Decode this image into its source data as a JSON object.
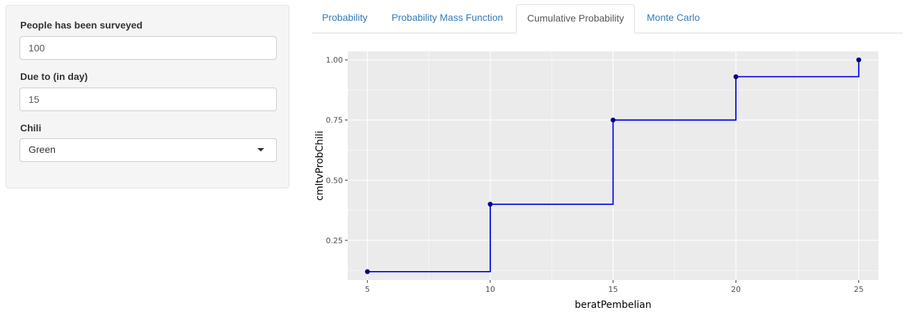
{
  "sidebar": {
    "surveyed": {
      "label": "People has been surveyed",
      "value": "100"
    },
    "due": {
      "label": "Due to (in day)",
      "value": "15"
    },
    "chili": {
      "label": "Chili",
      "selected": "Green",
      "icon": "chevron-down-icon"
    }
  },
  "tabs": [
    {
      "label": "Probability",
      "active": false
    },
    {
      "label": "Probability Mass Function",
      "active": false
    },
    {
      "label": "Cumulative Probability",
      "active": true
    },
    {
      "label": "Monte Carlo",
      "active": false
    }
  ],
  "colors": {
    "panel_background": "#ebebeb",
    "grid": "#ffffff",
    "line": "#0000ee",
    "point": "#00008b",
    "link": "#337ab7"
  },
  "chart_data": {
    "type": "line",
    "step": true,
    "xlabel": "beratPembelian",
    "ylabel": "cmltvProbChili",
    "x": [
      5,
      10,
      15,
      20,
      25
    ],
    "y": [
      0.12,
      0.4,
      0.75,
      0.93,
      1.0
    ],
    "xlim": [
      4.2,
      25.8
    ],
    "ylim": [
      0.085,
      1.035
    ],
    "x_ticks": [
      5,
      10,
      15,
      20,
      25
    ],
    "y_ticks": [
      0.25,
      0.5,
      0.75,
      1.0
    ],
    "x_tick_labels": [
      "5",
      "10",
      "15",
      "20",
      "25"
    ],
    "y_tick_labels": [
      "0.25",
      "0.50",
      "0.75",
      "1.00"
    ],
    "grid": true,
    "legend": "none"
  }
}
